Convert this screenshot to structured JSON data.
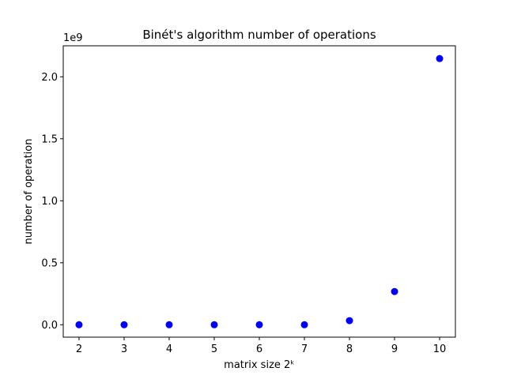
{
  "chart_data": {
    "type": "scatter",
    "title": "Binét's algorithm number of operations",
    "xlabel": "matrix size 2ᵏ",
    "ylabel": "number of operation",
    "y_offset_text": "1e9",
    "x": [
      2,
      3,
      4,
      5,
      6,
      7,
      8,
      9,
      10
    ],
    "y": [
      0.0,
      0.0,
      0.0,
      0.0,
      0.0,
      0.0,
      0.033,
      0.268,
      2.147
    ],
    "y_unit_scale": "1e9",
    "xlim": [
      1.65,
      10.35
    ],
    "ylim": [
      -0.1,
      2.25
    ],
    "x_ticks": [
      2,
      3,
      4,
      5,
      6,
      7,
      8,
      9,
      10
    ],
    "x_tick_labels": [
      "2",
      "3",
      "4",
      "5",
      "6",
      "7",
      "8",
      "9",
      "10"
    ],
    "y_ticks": [
      0.0,
      0.5,
      1.0,
      1.5,
      2.0
    ],
    "y_tick_labels": [
      "0.0",
      "0.5",
      "1.0",
      "1.5",
      "2.0"
    ],
    "marker_color": "#0000ff",
    "grid": false,
    "legend": "none"
  }
}
